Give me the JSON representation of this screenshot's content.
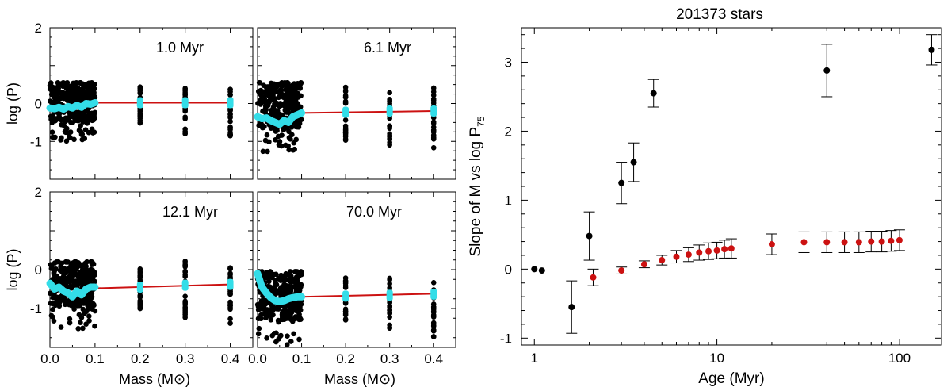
{
  "chart_data": [
    {
      "type": "scatter",
      "panel": "top-left",
      "label": "1.0 Myr",
      "ylabel": "log (P)",
      "xlabel": "",
      "xlim": [
        0.0,
        0.45
      ],
      "ylim": [
        -2.0,
        2.0
      ],
      "xticks": [],
      "yticks": [
        "2",
        "0",
        "-1"
      ],
      "fit": {
        "x": [
          0.1,
          0.4
        ],
        "y": [
          0.02,
          0.02
        ]
      },
      "cyan_curve": {
        "x": [
          0.0,
          0.01,
          0.02,
          0.03,
          0.04,
          0.05,
          0.06,
          0.07,
          0.08,
          0.09,
          0.1
        ],
        "y": [
          -0.12,
          -0.14,
          -0.1,
          -0.15,
          -0.08,
          -0.12,
          -0.05,
          -0.1,
          0.0,
          -0.02,
          0.02
        ]
      },
      "cyan_points": {
        "x": [
          0.2,
          0.3,
          0.4
        ],
        "y": [
          0.02,
          0.02,
          0.02
        ]
      },
      "columns": {
        "x": [
          0.2,
          0.3,
          0.4
        ],
        "ymin": [
          -0.55,
          -0.8,
          -0.9
        ],
        "ymax": [
          0.45,
          0.45,
          0.45
        ]
      },
      "dense_range": {
        "x0": 0.0,
        "x1": 0.1,
        "ymin": -1.0,
        "ymax": 0.55
      }
    },
    {
      "type": "scatter",
      "panel": "top-right",
      "label": "6.1 Myr",
      "ylabel": "",
      "xlabel": "",
      "xlim": [
        0.0,
        0.45
      ],
      "ylim": [
        -2.0,
        2.0
      ],
      "xticks": [],
      "yticks": [],
      "fit": {
        "x": [
          0.1,
          0.4
        ],
        "y": [
          -0.25,
          -0.2
        ]
      },
      "cyan_curve": {
        "x": [
          0.0,
          0.01,
          0.02,
          0.03,
          0.04,
          0.05,
          0.06,
          0.07,
          0.08,
          0.09,
          0.1
        ],
        "y": [
          -0.35,
          -0.4,
          -0.38,
          -0.45,
          -0.5,
          -0.55,
          -0.45,
          -0.5,
          -0.35,
          -0.3,
          -0.25
        ]
      },
      "cyan_points": {
        "x": [
          0.2,
          0.3,
          0.4
        ],
        "y": [
          -0.23,
          -0.2,
          -0.2
        ]
      },
      "columns": {
        "x": [
          0.2,
          0.3,
          0.4
        ],
        "ymin": [
          -1.0,
          -1.1,
          -1.2
        ],
        "ymax": [
          0.45,
          0.5,
          0.45
        ]
      },
      "dense_range": {
        "x0": 0.0,
        "x1": 0.1,
        "ymin": -1.3,
        "ymax": 0.55
      }
    },
    {
      "type": "scatter",
      "panel": "bottom-left",
      "label": "12.1 Myr",
      "ylabel": "log (P)",
      "xlabel": "Mass (M⊙)",
      "xlim": [
        0.0,
        0.45
      ],
      "ylim": [
        -2.0,
        2.0
      ],
      "xticks": [
        "0.0",
        "0.1",
        "0.2",
        "0.3",
        "0.4"
      ],
      "yticks": [
        "2",
        "0",
        "-1"
      ],
      "fit": {
        "x": [
          0.1,
          0.4
        ],
        "y": [
          -0.48,
          -0.38
        ]
      },
      "cyan_curve": {
        "x": [
          0.0,
          0.01,
          0.02,
          0.03,
          0.04,
          0.05,
          0.06,
          0.07,
          0.08,
          0.09,
          0.1
        ],
        "y": [
          -0.35,
          -0.5,
          -0.45,
          -0.55,
          -0.6,
          -0.7,
          -0.55,
          -0.65,
          -0.5,
          -0.45,
          -0.45
        ]
      },
      "cyan_points": {
        "x": [
          0.2,
          0.3,
          0.4
        ],
        "y": [
          -0.45,
          -0.4,
          -0.38
        ]
      },
      "columns": {
        "x": [
          0.2,
          0.3,
          0.4
        ],
        "ymin": [
          -1.0,
          -1.25,
          -1.4
        ],
        "ymax": [
          0.05,
          0.25,
          0.05
        ]
      },
      "dense_range": {
        "x0": 0.0,
        "x1": 0.1,
        "ymin": -1.55,
        "ymax": 0.2
      }
    },
    {
      "type": "scatter",
      "panel": "bottom-right",
      "label": "70.0 Myr",
      "ylabel": "",
      "xlabel": "Mass (M⊙)",
      "xlim": [
        0.0,
        0.45
      ],
      "ylim": [
        -2.0,
        2.0
      ],
      "xticks": [
        "0.0",
        "0.1",
        "0.2",
        "0.3",
        "0.4"
      ],
      "yticks": [],
      "fit": {
        "x": [
          0.1,
          0.4
        ],
        "y": [
          -0.7,
          -0.62
        ]
      },
      "cyan_curve": {
        "x": [
          0.0,
          0.01,
          0.02,
          0.03,
          0.04,
          0.05,
          0.06,
          0.07,
          0.08,
          0.09,
          0.1
        ],
        "y": [
          -0.1,
          -0.45,
          -0.6,
          -0.72,
          -0.8,
          -0.82,
          -0.8,
          -0.75,
          -0.72,
          -0.7,
          -0.7
        ]
      },
      "cyan_points": {
        "x": [
          0.2,
          0.3,
          0.4
        ],
        "y": [
          -0.68,
          -0.66,
          -0.63
        ]
      },
      "columns": {
        "x": [
          0.2,
          0.3,
          0.4
        ],
        "ymin": [
          -1.35,
          -1.55,
          -1.8
        ],
        "ymax": [
          -0.2,
          -0.15,
          -0.3
        ]
      },
      "dense_range": {
        "x0": 0.0,
        "x1": 0.1,
        "ymin": -1.95,
        "ymax": -0.05
      }
    },
    {
      "type": "scatter",
      "panel": "right",
      "title": "201373 stars",
      "xlabel": "Age (Myr)",
      "ylabel": "Slope of M vs log P",
      "ylabel_sub": "75",
      "xscale": "log",
      "xlim": [
        0.85,
        170
      ],
      "ylim": [
        -1.1,
        3.5
      ],
      "xticks": [
        "1",
        "10",
        "100"
      ],
      "yticks": [
        "-1",
        "0",
        "1",
        "2",
        "3"
      ],
      "series": [
        {
          "name": "black",
          "color": "#000000",
          "x": [
            1.0,
            1.1,
            1.6,
            2.0,
            3.0,
            3.5,
            4.5,
            40,
            150
          ],
          "y": [
            0.0,
            -0.02,
            -0.55,
            0.48,
            1.25,
            1.55,
            2.55,
            2.88,
            3.18
          ],
          "err": [
            0.0,
            0.0,
            0.38,
            0.35,
            0.3,
            0.28,
            0.2,
            0.38,
            0.22
          ]
        },
        {
          "name": "red",
          "color": "#cc1111",
          "x": [
            2.1,
            3.0,
            4.0,
            5.0,
            6.0,
            7.0,
            8.0,
            9.0,
            10.0,
            11.0,
            12.0,
            20,
            30,
            40,
            50,
            60,
            70,
            80,
            90,
            100
          ],
          "y": [
            -0.12,
            -0.02,
            0.07,
            0.13,
            0.18,
            0.21,
            0.24,
            0.26,
            0.27,
            0.29,
            0.3,
            0.36,
            0.39,
            0.39,
            0.39,
            0.39,
            0.4,
            0.4,
            0.41,
            0.42
          ],
          "err": [
            0.12,
            0.05,
            0.05,
            0.07,
            0.09,
            0.1,
            0.11,
            0.12,
            0.12,
            0.13,
            0.14,
            0.15,
            0.15,
            0.15,
            0.15,
            0.15,
            0.15,
            0.15,
            0.15,
            0.15
          ]
        }
      ]
    }
  ]
}
